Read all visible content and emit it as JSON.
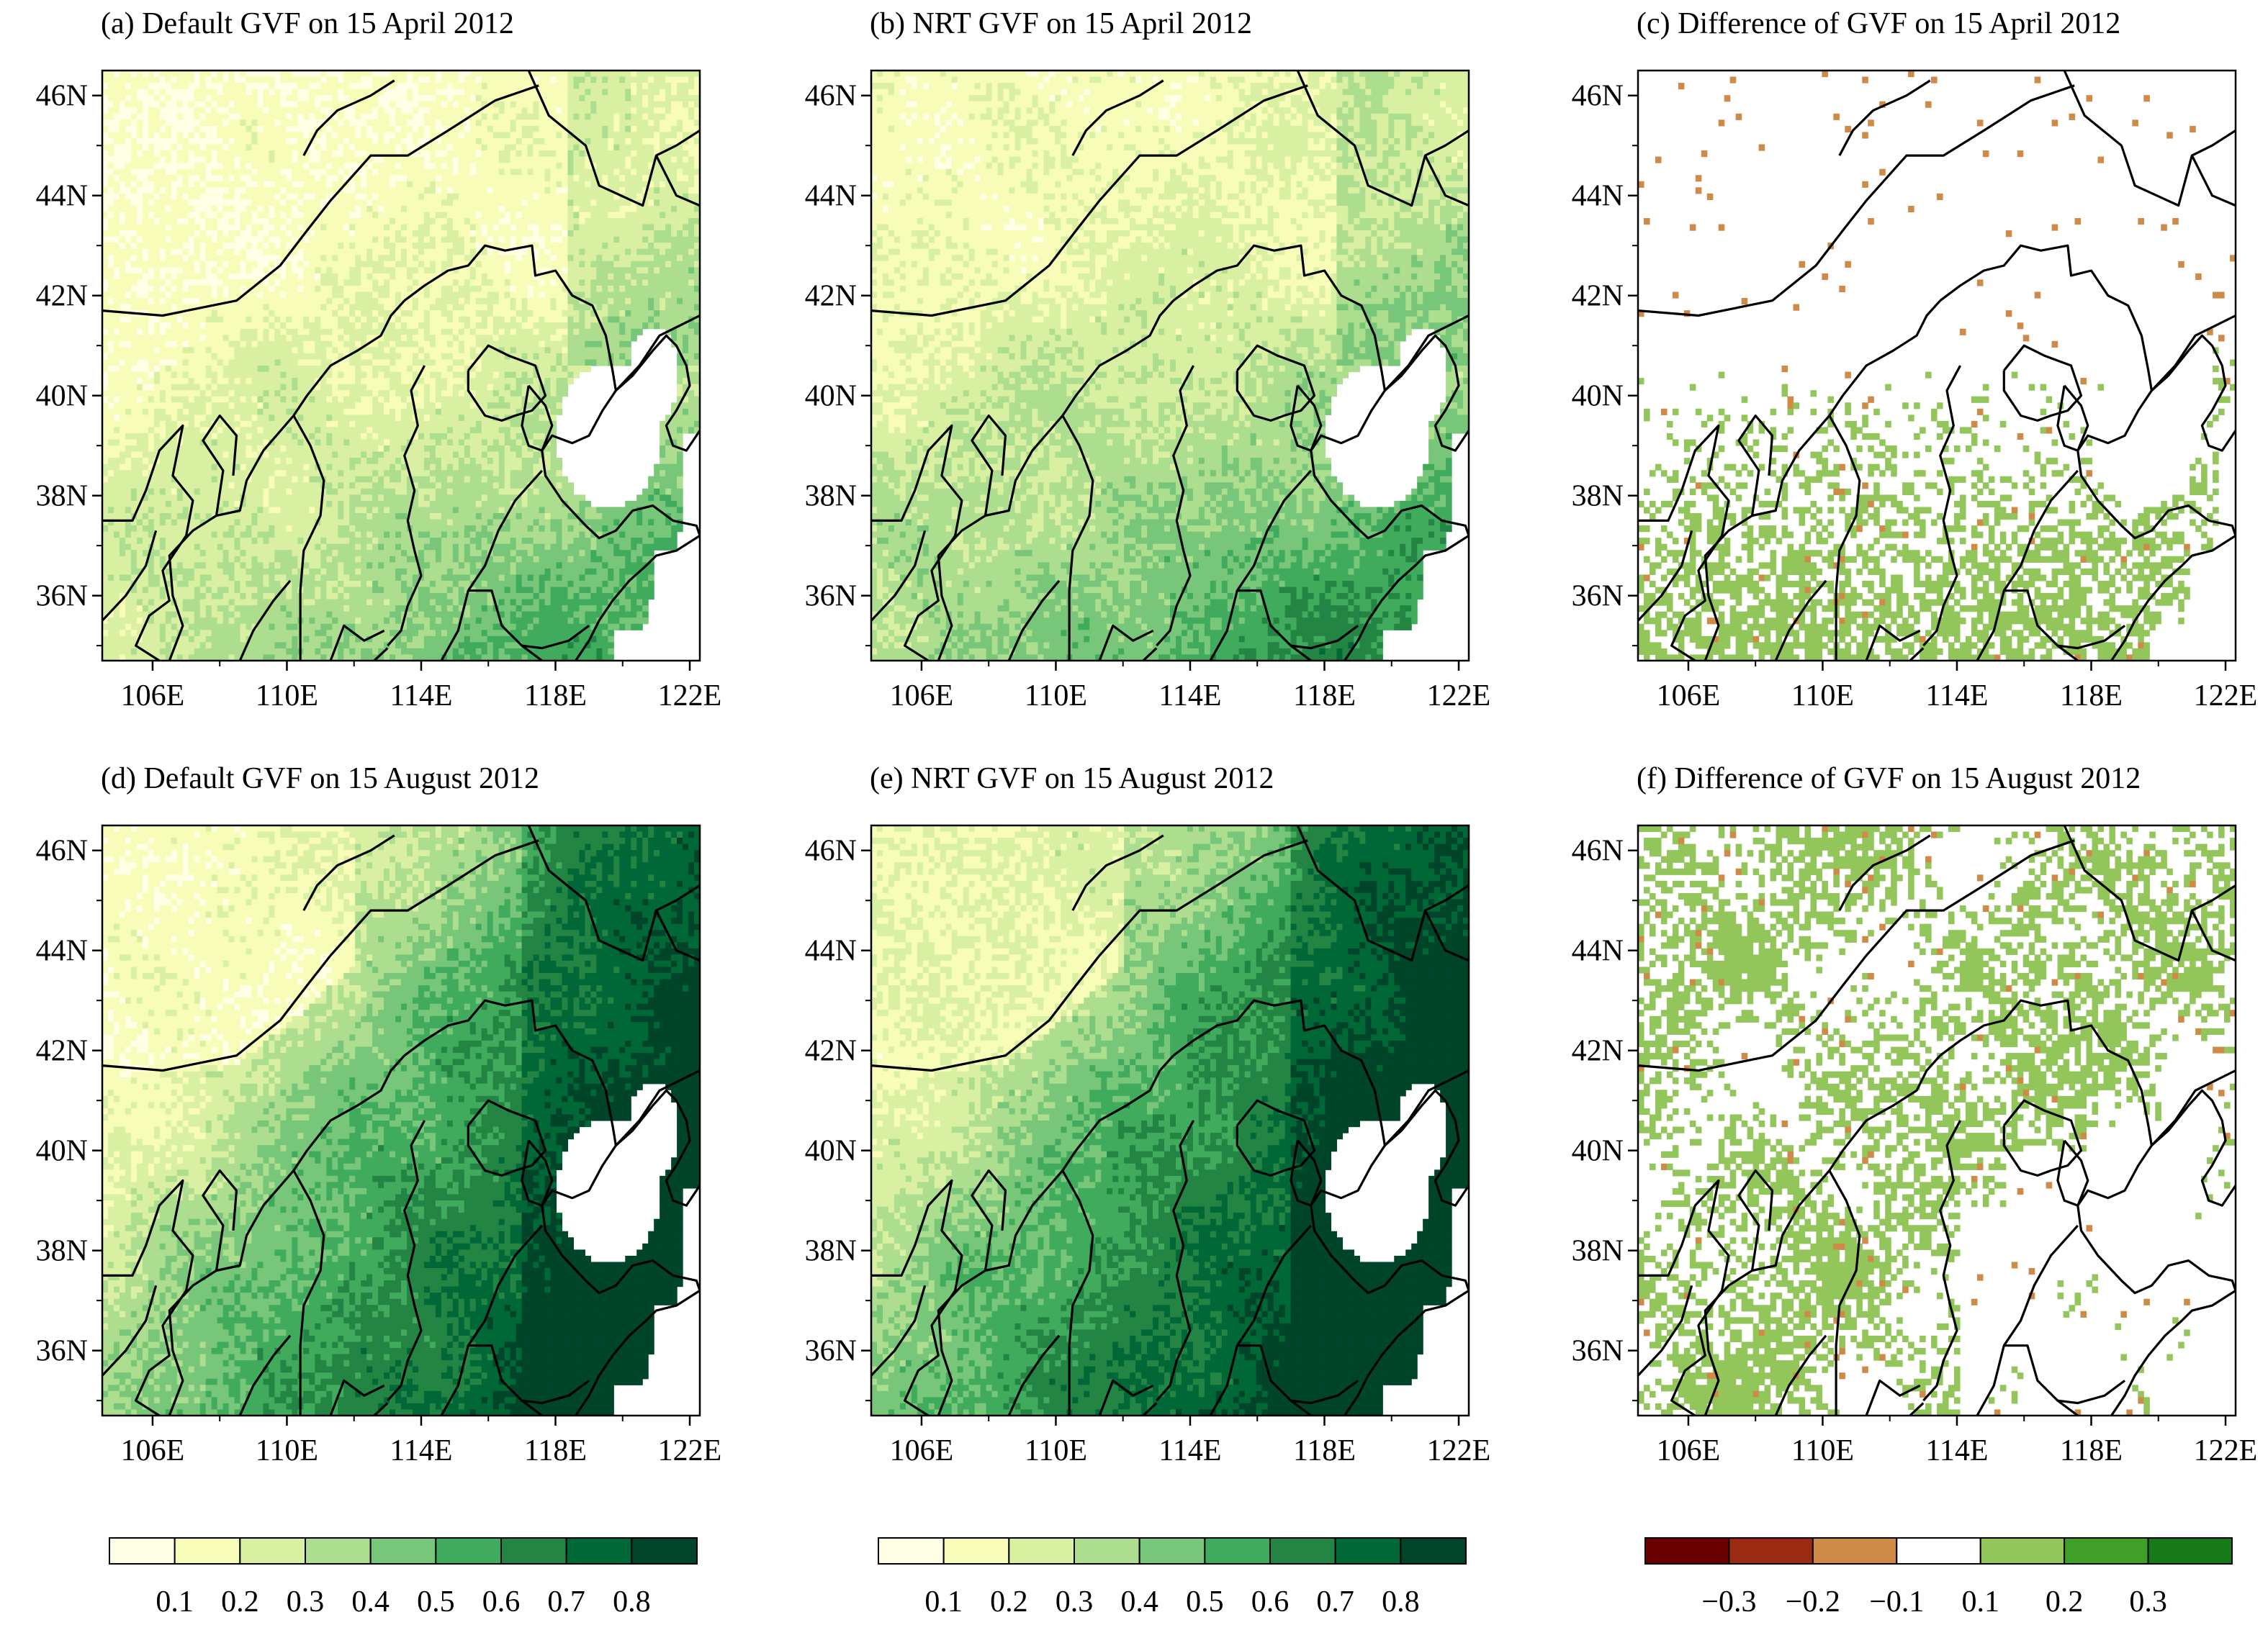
{
  "figure": {
    "panels": [
      {
        "id": "a",
        "title": "(a) Default GVF on 15 April 2012",
        "field": "gvf",
        "season": "april",
        "source": "default"
      },
      {
        "id": "b",
        "title": "(b) NRT GVF on 15 April 2012",
        "field": "gvf",
        "season": "april",
        "source": "nrt"
      },
      {
        "id": "c",
        "title": "(c) Difference of GVF on 15 April 2012",
        "field": "diff",
        "season": "april",
        "source": "diff"
      },
      {
        "id": "d",
        "title": "(d) Default GVF on 15 August 2012",
        "field": "gvf",
        "season": "august",
        "source": "default"
      },
      {
        "id": "e",
        "title": "(e) NRT GVF on 15 August 2012",
        "field": "gvf",
        "season": "august",
        "source": "nrt"
      },
      {
        "id": "f",
        "title": "(f) Difference of GVF on 15 August 2012",
        "field": "diff",
        "season": "august",
        "source": "diff"
      }
    ],
    "lat_ticks": [
      "46N",
      "44N",
      "42N",
      "40N",
      "38N",
      "36N"
    ],
    "lat_values": [
      46,
      44,
      42,
      40,
      38,
      36
    ],
    "lon_ticks": [
      "106E",
      "110E",
      "114E",
      "118E",
      "122E"
    ],
    "lon_values": [
      106,
      110,
      114,
      118,
      122
    ],
    "extent": {
      "lon_min": 104.5,
      "lon_max": 122.3,
      "lat_min": 34.7,
      "lat_max": 46.5
    },
    "colorbars": [
      {
        "id": "gvf-1",
        "colors": [
          "#ffffe5",
          "#f7fcb9",
          "#d9f0a3",
          "#addd8e",
          "#78c679",
          "#41ab5d",
          "#238443",
          "#006837",
          "#004529"
        ],
        "labels": [
          "0.1",
          "0.2",
          "0.3",
          "0.4",
          "0.5",
          "0.6",
          "0.7",
          "0.8"
        ]
      },
      {
        "id": "gvf-2",
        "colors": [
          "#ffffe5",
          "#f7fcb9",
          "#d9f0a3",
          "#addd8e",
          "#78c679",
          "#41ab5d",
          "#238443",
          "#006837",
          "#004529"
        ],
        "labels": [
          "0.1",
          "0.2",
          "0.3",
          "0.4",
          "0.5",
          "0.6",
          "0.7",
          "0.8"
        ]
      },
      {
        "id": "diff",
        "colors": [
          "#6b0000",
          "#9b2a12",
          "#d08a48",
          "#ffffff",
          "#92c65a",
          "#3f9f27",
          "#157a17"
        ],
        "labels": [
          "−0.3",
          "−0.2",
          "−0.1",
          "0.1",
          "0.2",
          "0.3"
        ]
      }
    ]
  }
}
